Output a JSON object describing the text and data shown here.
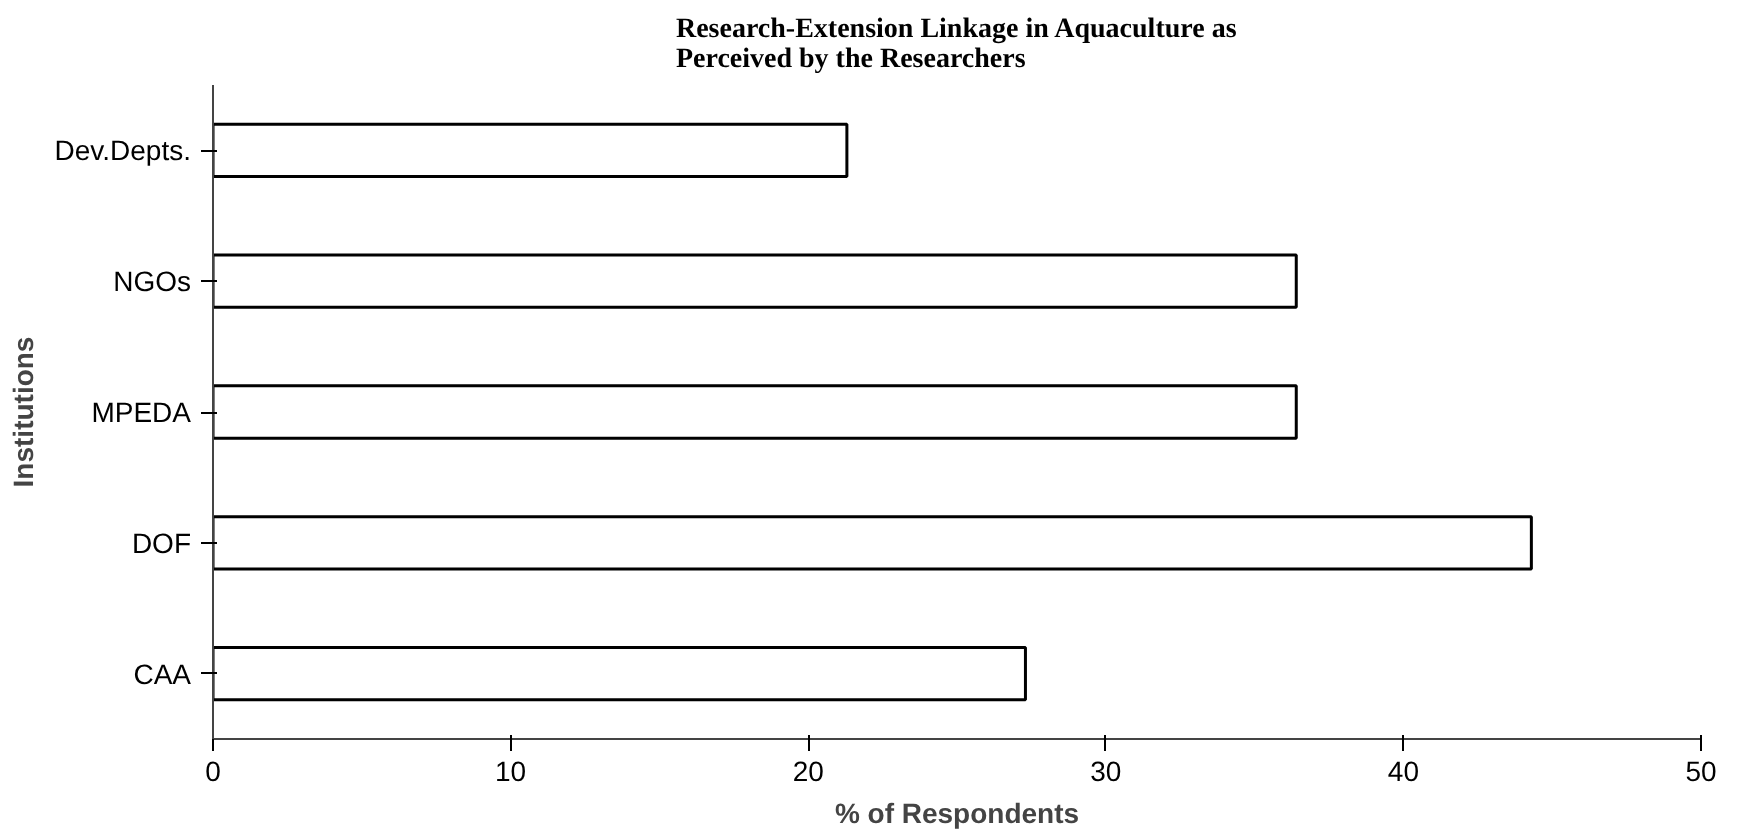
{
  "chart_data": {
    "type": "bar",
    "orientation": "horizontal",
    "title": "Research-Extension Linkage in Aquaculture as\nPerceived by the Researchers",
    "xlabel": "% of Respondents",
    "ylabel": "Institutions",
    "categories": [
      "Dev.Depts.",
      "NGOs",
      "MPEDA",
      "DOF",
      "CAA"
    ],
    "values": [
      21.3,
      36.4,
      36.4,
      44.3,
      27.3
    ],
    "color": "#ffffff",
    "xlim": [
      0,
      50
    ],
    "xticks": [
      0,
      10,
      20,
      30,
      40,
      50
    ],
    "grid": false
  }
}
